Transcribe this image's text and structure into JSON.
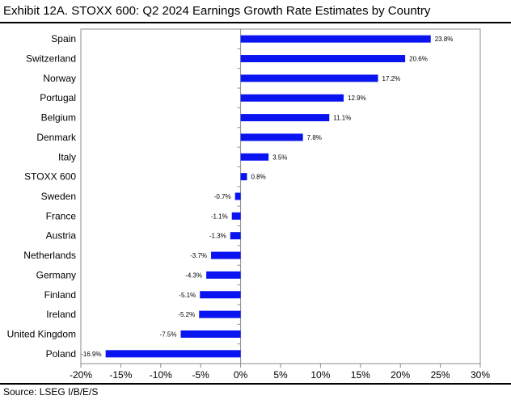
{
  "title": "Exhibit 12A.  STOXX 600: Q2 2024 Earnings Growth Rate Estimates by Country",
  "source": "Source: LSEG I/B/E/S",
  "chart_data": {
    "type": "bar",
    "orientation": "horizontal",
    "categories": [
      "Spain",
      "Switzerland",
      "Norway",
      "Portugal",
      "Belgium",
      "Denmark",
      "Italy",
      "STOXX 600",
      "Sweden",
      "France",
      "Austria",
      "Netherlands",
      "Germany",
      "Finland",
      "Ireland",
      "United Kingdom",
      "Poland"
    ],
    "values": [
      23.8,
      20.6,
      17.2,
      12.9,
      11.1,
      7.8,
      3.5,
      0.8,
      -0.7,
      -1.1,
      -1.3,
      -3.7,
      -4.3,
      -5.1,
      -5.2,
      -7.5,
      -16.9
    ],
    "data_labels": [
      "23.8%",
      "20.6%",
      "17.2%",
      "12.9%",
      "11.1%",
      "7.8%",
      "3.5%",
      "0.8%",
      "-0.7%",
      "-1.1%",
      "-1.3%",
      "-3.7%",
      "-4.3%",
      "-5.1%",
      "-5.2%",
      "-7.5%",
      "-16.9%"
    ],
    "xlim": [
      -20,
      30
    ],
    "x_ticks": [
      -20,
      -15,
      -10,
      -5,
      0,
      5,
      10,
      15,
      20,
      25,
      30
    ],
    "x_tick_labels": [
      "-20%",
      "-15%",
      "-10%",
      "-5%",
      "0%",
      "5%",
      "10%",
      "15%",
      "20%",
      "25%",
      "30%"
    ],
    "bar_color": "#0a14f0",
    "grid": false
  }
}
